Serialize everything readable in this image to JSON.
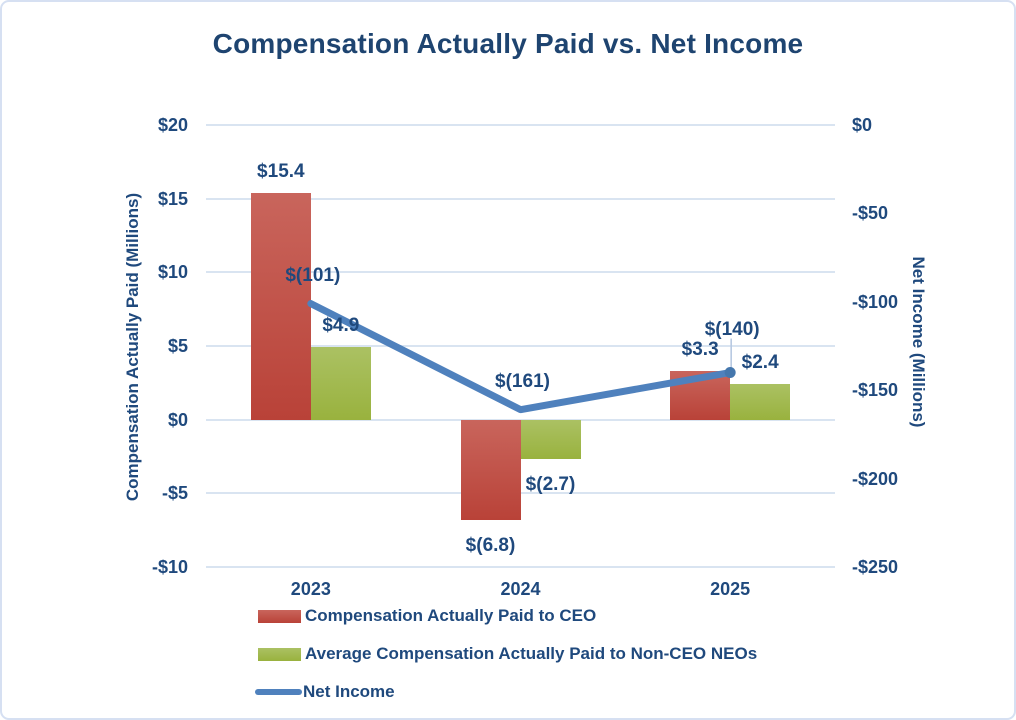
{
  "title": "Compensation Actually Paid vs. Net Income",
  "colors": {
    "title_text": "#1E4470",
    "label_text": "#1F497D",
    "grid": "#D9E4F1",
    "frame_border": "#D6E0F2",
    "bar_red_top": "#C9655C",
    "bar_red_bottom": "#B94238",
    "bar_green_top": "#ABC163",
    "bar_green_bottom": "#99B23E",
    "line_blue": "#4F81BD",
    "line_marker": "#4577AD",
    "leader": "#B7C9E2"
  },
  "chart_data": {
    "type": "combo-bar-line",
    "categories": [
      "2023",
      "2024",
      "2025"
    ],
    "bar_series": [
      {
        "name": "Compensation Actually Paid to CEO",
        "axis": "left",
        "color_key": "red",
        "values": [
          15.4,
          -6.8,
          3.3
        ],
        "labels": [
          "$15.4",
          "$(6.8)",
          "$3.3"
        ]
      },
      {
        "name": "Average Compensation Actually Paid to Non-CEO NEOs",
        "axis": "left",
        "color_key": "green",
        "values": [
          4.9,
          -2.7,
          2.4
        ],
        "labels": [
          "$4.9",
          "$(2.7)",
          "$2.4"
        ]
      }
    ],
    "line_series": {
      "name": "Net Income",
      "axis": "right",
      "values": [
        -101,
        -161,
        -140
      ],
      "labels": [
        "$(101)",
        "$(161)",
        "$(140)"
      ],
      "label_dy": [
        -28,
        -28,
        -43
      ],
      "end_marker_on_last": true,
      "leader_line_on_last": true
    },
    "axes": {
      "left": {
        "title": "Compensation Actually Paid (Millions)",
        "min": -10,
        "max": 20,
        "tick_step": 5,
        "tick_labels": [
          "$20",
          "$15",
          "$10",
          "$5",
          "$0",
          "-$5",
          "-$10"
        ]
      },
      "right": {
        "title": "Net Income (Millions)",
        "min": -250,
        "max": 0,
        "tick_step": 50,
        "tick_labels": [
          "$0",
          "-$50",
          "-$100",
          "-$150",
          "-$200",
          "-$250"
        ]
      }
    },
    "grid": true,
    "legend_position": "bottom-left",
    "legend": [
      {
        "swatch": "bar-red",
        "label": "Compensation Actually Paid to CEO"
      },
      {
        "swatch": "bar-green",
        "label": "Average Compensation Actually Paid to Non-CEO NEOs"
      },
      {
        "swatch": "line-blue",
        "label": "Net Income"
      }
    ]
  }
}
